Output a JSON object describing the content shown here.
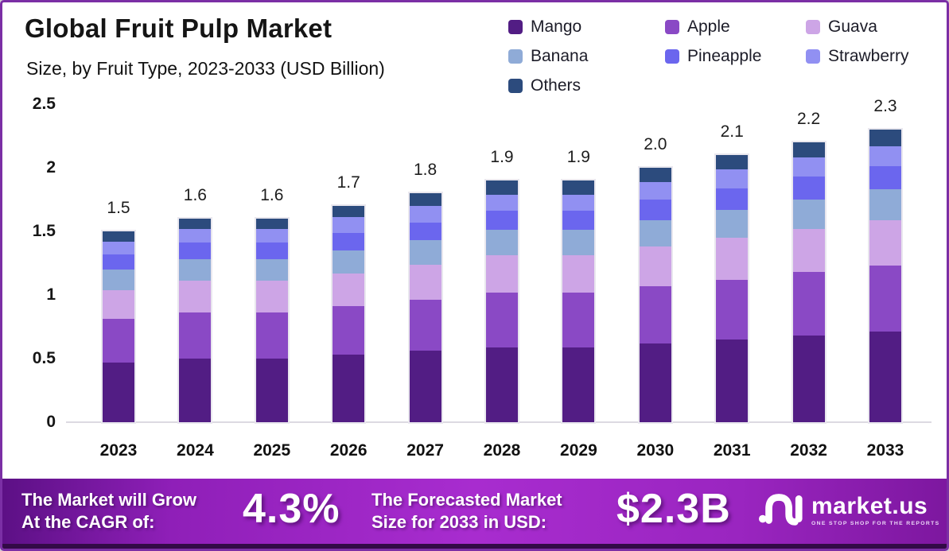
{
  "header": {
    "title": "Global Fruit Pulp Market",
    "subtitle": "Size, by Fruit Type, 2023-2033 (USD Billion)"
  },
  "chart_data": {
    "type": "bar",
    "stacked": true,
    "title": "Global Fruit Pulp Market",
    "subtitle": "Size, by Fruit Type, 2023-2033 (USD Billion)",
    "unit": "USD Billion",
    "categories": [
      "2023",
      "2024",
      "2025",
      "2026",
      "2027",
      "2028",
      "2029",
      "2030",
      "2031",
      "2032",
      "2033"
    ],
    "series": [
      {
        "name": "Mango",
        "color": "#521d84",
        "values": [
          0.47,
          0.5,
          0.5,
          0.53,
          0.56,
          0.59,
          0.59,
          0.62,
          0.65,
          0.68,
          0.71
        ]
      },
      {
        "name": "Apple",
        "color": "#8a49c5",
        "values": [
          0.34,
          0.36,
          0.36,
          0.38,
          0.4,
          0.43,
          0.43,
          0.45,
          0.47,
          0.5,
          0.52
        ]
      },
      {
        "name": "Guava",
        "color": "#cda5e6",
        "values": [
          0.23,
          0.25,
          0.25,
          0.26,
          0.28,
          0.29,
          0.29,
          0.31,
          0.33,
          0.34,
          0.36
        ]
      },
      {
        "name": "Banana",
        "color": "#8fabd7",
        "values": [
          0.16,
          0.17,
          0.17,
          0.18,
          0.19,
          0.2,
          0.2,
          0.21,
          0.22,
          0.23,
          0.24
        ]
      },
      {
        "name": "Pineapple",
        "color": "#6b66ee",
        "values": [
          0.12,
          0.13,
          0.13,
          0.14,
          0.14,
          0.15,
          0.15,
          0.16,
          0.17,
          0.18,
          0.18
        ]
      },
      {
        "name": "Strawberry",
        "color": "#9190f2",
        "values": [
          0.1,
          0.11,
          0.11,
          0.12,
          0.13,
          0.13,
          0.13,
          0.14,
          0.15,
          0.15,
          0.16
        ]
      },
      {
        "name": "Others",
        "color": "#2c4b7d",
        "values": [
          0.08,
          0.08,
          0.08,
          0.09,
          0.1,
          0.11,
          0.11,
          0.11,
          0.11,
          0.12,
          0.13
        ]
      }
    ],
    "totals": [
      "1.5",
      "1.6",
      "1.6",
      "1.7",
      "1.8",
      "1.9",
      "1.9",
      "2.0",
      "2.1",
      "2.2",
      "2.3"
    ],
    "y_ticks": [
      {
        "label": "2.5",
        "value": 2.5
      },
      {
        "label": "2",
        "value": 2.0
      },
      {
        "label": "1.5",
        "value": 1.5
      },
      {
        "label": "1",
        "value": 1.0
      },
      {
        "label": "0.5",
        "value": 0.5
      },
      {
        "label": "0",
        "value": 0.0
      }
    ],
    "ylim": [
      0,
      2.5
    ],
    "grid": false,
    "legend_position": "top-right"
  },
  "banner": {
    "cagr_label_line1": "The Market will Grow",
    "cagr_label_line2": "At the CAGR of:",
    "cagr_value": "4.3%",
    "forecast_label_line1": "The Forecasted Market",
    "forecast_label_line2": "Size for 2033 in USD:",
    "forecast_value": "$2.3B",
    "brand_name": "market.us",
    "brand_tagline": "ONE STOP SHOP FOR THE REPORTS"
  },
  "colors": {
    "frame_border": "#7b2fa5",
    "banner_gradient_mid": "#a82ccf",
    "banner_bottom_edge": "#330a47",
    "baseline": "#dcdae1"
  }
}
